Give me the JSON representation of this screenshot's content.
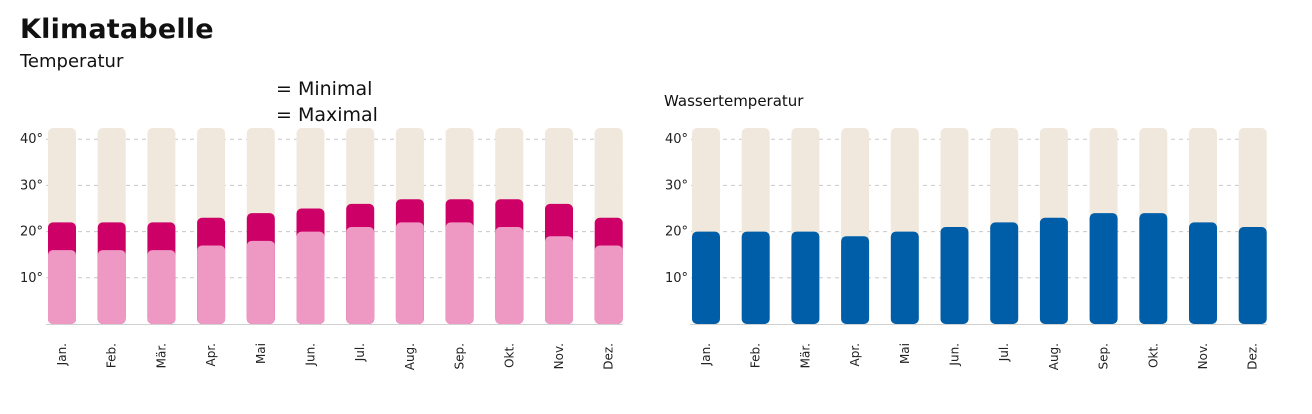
{
  "header": {
    "title": "Klimatabelle",
    "subtitle": "Temperatur"
  },
  "legend": {
    "min_label": "= Minimal",
    "max_label": "= Maximal"
  },
  "colors": {
    "background_bar": "#f0e8dc",
    "temp_max": "#cc0066",
    "temp_min": "#ee99c4",
    "water": "#005ea8",
    "grid": "#c8c8c8"
  },
  "chart_data": [
    {
      "type": "bar",
      "title": "",
      "categories": [
        "Jan.",
        "Feb.",
        "Mär.",
        "Apr.",
        "Mai",
        "Jun.",
        "Jul.",
        "Aug.",
        "Sep.",
        "Okt.",
        "Nov.",
        "Dez."
      ],
      "series": [
        {
          "name": "Maximal",
          "values": [
            22,
            22,
            22,
            23,
            24,
            25,
            26,
            27,
            27,
            27,
            26,
            23
          ]
        },
        {
          "name": "Minimal",
          "values": [
            16,
            16,
            16,
            17,
            18,
            20,
            21,
            22,
            22,
            21,
            19,
            17
          ]
        }
      ],
      "ylim": [
        0,
        42
      ],
      "yticks": [
        "10°",
        "20°",
        "30°",
        "40°"
      ],
      "grid": true,
      "legend": "top-center"
    },
    {
      "type": "bar",
      "title": "Wassertemperatur",
      "categories": [
        "Jan.",
        "Feb.",
        "Mär.",
        "Apr.",
        "Mai",
        "Jun.",
        "Jul.",
        "Aug.",
        "Sep.",
        "Okt.",
        "Nov.",
        "Dez."
      ],
      "series": [
        {
          "values": [
            20,
            20,
            20,
            19,
            20,
            21,
            22,
            23,
            24,
            24,
            22,
            21
          ]
        }
      ],
      "ylim": [
        0,
        42
      ],
      "yticks": [
        "10°",
        "20°",
        "30°",
        "40°"
      ],
      "grid": true
    }
  ]
}
